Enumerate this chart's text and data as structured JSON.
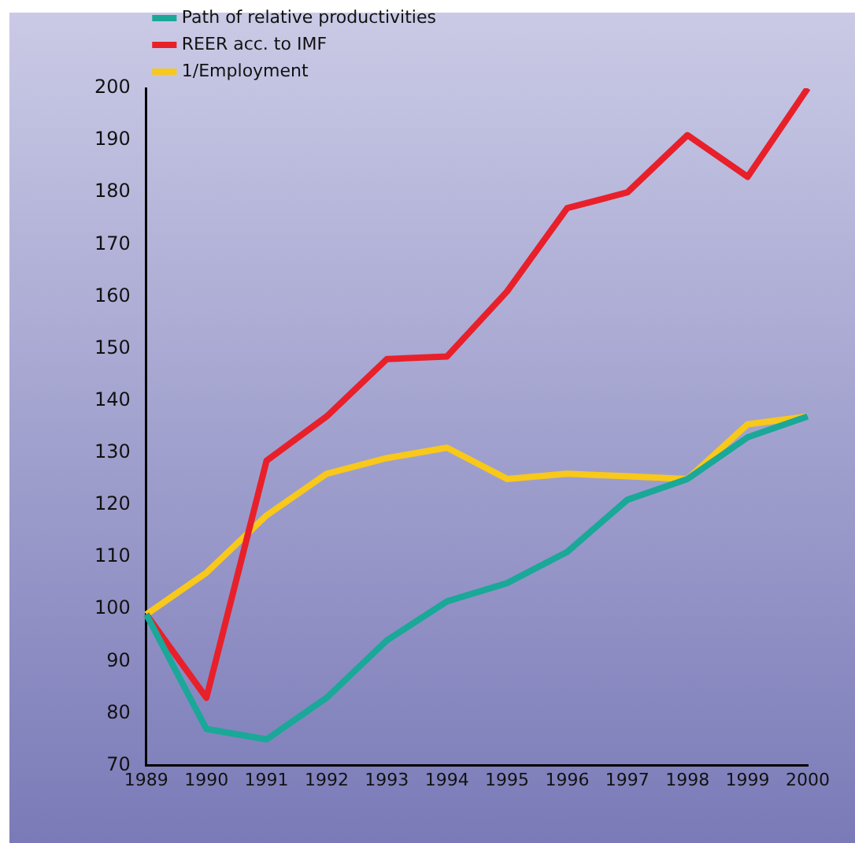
{
  "chart_data": {
    "type": "line",
    "categories": [
      "1989",
      "1990",
      "1991",
      "1992",
      "1993",
      "1994",
      "1995",
      "1996",
      "1997",
      "1998",
      "1999",
      "2000"
    ],
    "series": [
      {
        "name": "Path of relative productivities",
        "color": "#1aa898",
        "values": [
          99,
          77,
          75,
          83,
          94,
          101.5,
          105,
          111,
          121,
          125,
          133,
          137
        ]
      },
      {
        "name": "REER acc. to IMF",
        "color": "#e8202a",
        "values": [
          99,
          83,
          128.5,
          137,
          148,
          148.5,
          161,
          177,
          180,
          191,
          183,
          200
        ]
      },
      {
        "name": "1/Employment",
        "color": "#f8c81a",
        "values": [
          99,
          107,
          118,
          126,
          129,
          131,
          125,
          126,
          125.5,
          125,
          135.5,
          137
        ]
      }
    ],
    "ylim": [
      70,
      200
    ],
    "yticks": [
      70,
      80,
      90,
      100,
      110,
      120,
      130,
      140,
      150,
      160,
      170,
      180,
      190,
      200
    ],
    "grid": false,
    "legend": "top left",
    "marker": "none",
    "line_style": "solid"
  }
}
